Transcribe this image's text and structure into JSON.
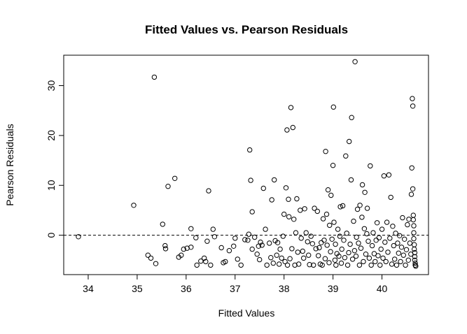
{
  "chart_data": {
    "type": "scatter",
    "title": "Fitted Values vs. Pearson Residuals",
    "xlabel": "Fitted Values",
    "ylabel": "Pearson Residuals",
    "xlim": [
      33.5,
      40.95
    ],
    "ylim": [
      -7.9,
      36.1
    ],
    "x_ticks": [
      34,
      35,
      36,
      37,
      38,
      39,
      40
    ],
    "y_ticks": [
      0,
      10,
      20,
      30
    ],
    "reference_line": {
      "y": 0,
      "style": "dashed"
    },
    "grid": false,
    "marker": "open-circle",
    "points": [
      [
        33.8,
        -0.3
      ],
      [
        34.93,
        6.0
      ],
      [
        35.22,
        -4.0
      ],
      [
        35.28,
        -4.6
      ],
      [
        35.35,
        31.7
      ],
      [
        35.38,
        -5.7
      ],
      [
        35.52,
        2.2
      ],
      [
        35.57,
        -2.1
      ],
      [
        35.58,
        -2.7
      ],
      [
        35.63,
        9.8
      ],
      [
        35.77,
        11.4
      ],
      [
        35.85,
        -4.4
      ],
      [
        35.9,
        -4.0
      ],
      [
        35.95,
        -2.8
      ],
      [
        36.02,
        -2.6
      ],
      [
        36.1,
        1.3
      ],
      [
        36.1,
        -2.4
      ],
      [
        36.2,
        -0.5
      ],
      [
        36.22,
        -6.0
      ],
      [
        36.3,
        -5.2
      ],
      [
        36.37,
        -4.6
      ],
      [
        36.4,
        -5.3
      ],
      [
        36.43,
        -1.2
      ],
      [
        36.46,
        8.9
      ],
      [
        36.5,
        -6.0
      ],
      [
        36.55,
        1.2
      ],
      [
        36.58,
        -0.3
      ],
      [
        36.72,
        -2.5
      ],
      [
        36.76,
        -5.5
      ],
      [
        36.8,
        -5.3
      ],
      [
        36.88,
        -3.1
      ],
      [
        36.97,
        -2.2
      ],
      [
        37.0,
        -0.6
      ],
      [
        37.05,
        -4.8
      ],
      [
        37.12,
        -6.0
      ],
      [
        37.2,
        -0.9
      ],
      [
        37.26,
        -1.0
      ],
      [
        37.28,
        0.2
      ],
      [
        37.3,
        17.1
      ],
      [
        37.32,
        11.0
      ],
      [
        37.35,
        4.7
      ],
      [
        37.35,
        -2.8
      ],
      [
        37.4,
        -0.4
      ],
      [
        37.45,
        -3.8
      ],
      [
        37.48,
        -2.2
      ],
      [
        37.5,
        -4.9
      ],
      [
        37.52,
        -1.4
      ],
      [
        37.55,
        -2.0
      ],
      [
        37.58,
        9.4
      ],
      [
        37.62,
        1.2
      ],
      [
        37.65,
        -6.0
      ],
      [
        37.7,
        -1.6
      ],
      [
        37.73,
        -4.5
      ],
      [
        37.75,
        7.1
      ],
      [
        37.78,
        -5.6
      ],
      [
        37.8,
        11.1
      ],
      [
        37.82,
        -1.1
      ],
      [
        37.85,
        -4.0
      ],
      [
        37.87,
        -1.5
      ],
      [
        37.9,
        -5.8
      ],
      [
        37.92,
        -2.8
      ],
      [
        37.95,
        -4.6
      ],
      [
        37.98,
        -0.2
      ],
      [
        38.0,
        4.2
      ],
      [
        38.02,
        -5.3
      ],
      [
        38.04,
        9.5
      ],
      [
        38.06,
        21.1
      ],
      [
        38.07,
        -6.0
      ],
      [
        38.09,
        7.2
      ],
      [
        38.1,
        3.7
      ],
      [
        38.12,
        -4.7
      ],
      [
        38.14,
        25.6
      ],
      [
        38.16,
        -2.7
      ],
      [
        38.18,
        21.6
      ],
      [
        38.2,
        3.2
      ],
      [
        38.22,
        -6.0
      ],
      [
        38.24,
        0.5
      ],
      [
        38.26,
        7.3
      ],
      [
        38.28,
        -3.4
      ],
      [
        38.3,
        -5.8
      ],
      [
        38.33,
        5.0
      ],
      [
        38.35,
        -0.6
      ],
      [
        38.38,
        -3.2
      ],
      [
        38.4,
        -4.6
      ],
      [
        38.42,
        5.3
      ],
      [
        38.45,
        0.5
      ],
      [
        38.48,
        -1.3
      ],
      [
        38.5,
        -4.0
      ],
      [
        38.52,
        -5.9
      ],
      [
        38.55,
        -0.2
      ],
      [
        38.58,
        -1.7
      ],
      [
        38.6,
        -6.0
      ],
      [
        38.62,
        5.4
      ],
      [
        38.65,
        -2.7
      ],
      [
        38.68,
        4.8
      ],
      [
        38.7,
        -4.1
      ],
      [
        38.72,
        -2.5
      ],
      [
        38.74,
        -5.8
      ],
      [
        38.76,
        -1.5
      ],
      [
        38.78,
        -6.0
      ],
      [
        38.8,
        3.3
      ],
      [
        38.82,
        -1.0
      ],
      [
        38.84,
        -4.7
      ],
      [
        38.85,
        16.8
      ],
      [
        38.87,
        4.2
      ],
      [
        38.88,
        -2.0
      ],
      [
        38.9,
        9.1
      ],
      [
        38.92,
        -5.5
      ],
      [
        38.93,
        2.0
      ],
      [
        38.95,
        -3.3
      ],
      [
        38.96,
        8.0
      ],
      [
        38.98,
        -0.8
      ],
      [
        39.0,
        14.0
      ],
      [
        39.01,
        25.7
      ],
      [
        39.02,
        2.6
      ],
      [
        39.04,
        -5.0
      ],
      [
        39.05,
        -1.8
      ],
      [
        39.06,
        -6.0
      ],
      [
        39.08,
        -3.7
      ],
      [
        39.1,
        1.2
      ],
      [
        39.12,
        -4.2
      ],
      [
        39.14,
        -0.2
      ],
      [
        39.15,
        5.7
      ],
      [
        39.17,
        -5.6
      ],
      [
        39.18,
        -2.8
      ],
      [
        39.2,
        5.9
      ],
      [
        39.22,
        -1.0
      ],
      [
        39.24,
        -4.5
      ],
      [
        39.26,
        15.9
      ],
      [
        39.28,
        0.4
      ],
      [
        39.3,
        -6.0
      ],
      [
        39.32,
        -3.5
      ],
      [
        39.33,
        18.8
      ],
      [
        39.35,
        -1.8
      ],
      [
        39.37,
        11.1
      ],
      [
        39.38,
        23.6
      ],
      [
        39.4,
        -4.8
      ],
      [
        39.42,
        2.8
      ],
      [
        39.44,
        -3.1
      ],
      [
        39.45,
        34.8
      ],
      [
        39.47,
        -4.2
      ],
      [
        39.48,
        -0.4
      ],
      [
        39.5,
        5.2
      ],
      [
        39.52,
        -1.6
      ],
      [
        39.54,
        -6.0
      ],
      [
        39.55,
        6.0
      ],
      [
        39.57,
        -2.6
      ],
      [
        39.59,
        3.6
      ],
      [
        39.6,
        10.1
      ],
      [
        39.62,
        -5.3
      ],
      [
        39.64,
        1.3
      ],
      [
        39.65,
        8.6
      ],
      [
        39.67,
        -3.8
      ],
      [
        39.69,
        0.3
      ],
      [
        39.7,
        5.4
      ],
      [
        39.72,
        -1.2
      ],
      [
        39.74,
        -4.6
      ],
      [
        39.76,
        13.9
      ],
      [
        39.78,
        -6.0
      ],
      [
        39.8,
        -2.1
      ],
      [
        39.82,
        0.5
      ],
      [
        39.84,
        -3.7
      ],
      [
        39.86,
        -5.3
      ],
      [
        39.88,
        -1.0
      ],
      [
        39.9,
        2.5
      ],
      [
        39.92,
        -4.1
      ],
      [
        39.94,
        -0.5
      ],
      [
        39.96,
        -6.0
      ],
      [
        39.98,
        -2.8
      ],
      [
        40.0,
        1.2
      ],
      [
        40.02,
        -4.6
      ],
      [
        40.04,
        11.9
      ],
      [
        40.06,
        -1.4
      ],
      [
        40.08,
        -5.3
      ],
      [
        40.1,
        2.6
      ],
      [
        40.12,
        -3.4
      ],
      [
        40.14,
        12.1
      ],
      [
        40.16,
        -0.6
      ],
      [
        40.18,
        7.6
      ],
      [
        40.2,
        -5.8
      ],
      [
        40.22,
        1.8
      ],
      [
        40.24,
        -2.1
      ],
      [
        40.26,
        -4.8
      ],
      [
        40.28,
        0.4
      ],
      [
        40.3,
        -6.0
      ],
      [
        40.32,
        -1.6
      ],
      [
        40.34,
        -3.6
      ],
      [
        40.36,
        -0.1
      ],
      [
        40.38,
        -5.3
      ],
      [
        40.4,
        -2.4
      ],
      [
        40.42,
        3.5
      ],
      [
        40.44,
        -4.0
      ],
      [
        40.46,
        -0.8
      ],
      [
        40.48,
        -6.0
      ],
      [
        40.5,
        -2.9
      ],
      [
        40.52,
        2.1
      ],
      [
        40.54,
        -5.0
      ],
      [
        40.55,
        3.2
      ],
      [
        40.57,
        -1.6
      ],
      [
        40.59,
        -3.8
      ],
      [
        40.6,
        8.2
      ],
      [
        40.61,
        13.5
      ],
      [
        40.62,
        27.4
      ],
      [
        40.63,
        25.9
      ],
      [
        40.63,
        9.3
      ],
      [
        40.64,
        4.0
      ],
      [
        40.64,
        3.1
      ],
      [
        40.65,
        1.9
      ],
      [
        40.65,
        0.5
      ],
      [
        40.65,
        -0.7
      ],
      [
        40.66,
        -1.9
      ],
      [
        40.66,
        -2.8
      ],
      [
        40.67,
        -3.5
      ],
      [
        40.67,
        -4.3
      ],
      [
        40.67,
        -5.0
      ],
      [
        40.68,
        -5.6
      ],
      [
        40.68,
        -6.0
      ],
      [
        40.69,
        -6.2
      ]
    ]
  }
}
